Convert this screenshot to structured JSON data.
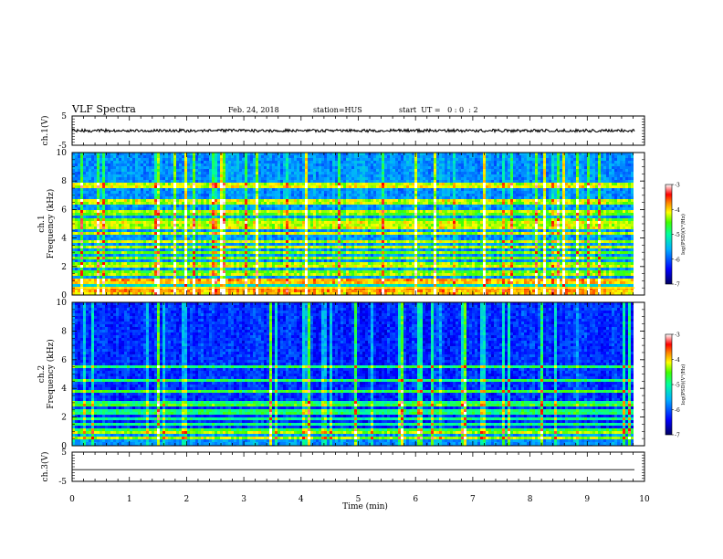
{
  "header": {
    "title": "VLF Spectra",
    "date": "Feb. 24, 2018",
    "station": "station=HUS",
    "start": "start  UT =   0 : 0  : 2"
  },
  "chart_data": [
    {
      "type": "line",
      "name": "ch.1 waveform",
      "ylabel": "ch.1(V)",
      "ylim": [
        -5,
        5
      ],
      "yticks": [
        "5",
        "-5"
      ],
      "xlim": [
        0,
        10
      ],
      "baseline": 0,
      "trace_end_x": 9.83,
      "series": [
        {
          "x": [
            0,
            9.83
          ],
          "y": [
            0,
            0
          ]
        }
      ]
    },
    {
      "type": "heatmap",
      "name": "ch.1 spectrogram",
      "ylabel_lines": [
        "ch.1",
        "Frequency (kHz)"
      ],
      "ylim": [
        0,
        10
      ],
      "yticks": [
        "0",
        "2",
        "4",
        "6",
        "8",
        "10"
      ],
      "xlim": [
        0,
        10
      ],
      "data_end_x": 9.83,
      "horizontal_bands_khz": [
        0.2,
        0.5,
        1.0,
        1.4,
        1.6,
        2.1,
        2.6,
        3.0,
        3.4,
        3.8,
        4.3,
        4.8,
        5.2,
        5.8,
        6.5,
        7.7
      ],
      "colorbar": {
        "label": "log(PSD)(V²/Hz)",
        "ticks": [
          "-3",
          "-4",
          "-5",
          "-6",
          "-7"
        ],
        "range": [
          -7,
          -3
        ]
      }
    },
    {
      "type": "heatmap",
      "name": "ch.2 spectrogram",
      "ylabel_lines": [
        "ch.2",
        "Frequency (kHz)"
      ],
      "ylim": [
        0,
        10
      ],
      "yticks": [
        "0",
        "2",
        "4",
        "6",
        "8",
        "10"
      ],
      "xlim": [
        0,
        10
      ],
      "data_end_x": 9.83,
      "horizontal_bands_khz": [
        0.5,
        1.0,
        1.5,
        1.9,
        2.4,
        2.9,
        3.8,
        4.6,
        5.5
      ],
      "colorbar": {
        "label": "log(PSD)(V²/Hz)",
        "ticks": [
          "-3",
          "-4",
          "-5",
          "-6",
          "-7"
        ],
        "range": [
          -7,
          -3
        ]
      }
    },
    {
      "type": "line",
      "name": "ch.3 waveform",
      "ylabel": "ch.3(V)",
      "ylim": [
        -5,
        5
      ],
      "yticks": [
        "5",
        "-5"
      ],
      "xlim": [
        0,
        10
      ],
      "baseline": -1,
      "trace_end_x": 9.83,
      "series": [
        {
          "x": [
            0,
            9.83
          ],
          "y": [
            -1,
            -1
          ]
        }
      ]
    }
  ],
  "x_axis": {
    "label": "Time (min)",
    "ticks": [
      "0",
      "1",
      "2",
      "3",
      "4",
      "5",
      "6",
      "7",
      "8",
      "9",
      "10"
    ]
  },
  "colors": {
    "colormap": [
      "#000060",
      "#0000c0",
      "#0040ff",
      "#00b0ff",
      "#00ffa0",
      "#40ff00",
      "#ffff00",
      "#ff8000",
      "#ff0000",
      "#ffffff"
    ],
    "background": "#000080"
  }
}
